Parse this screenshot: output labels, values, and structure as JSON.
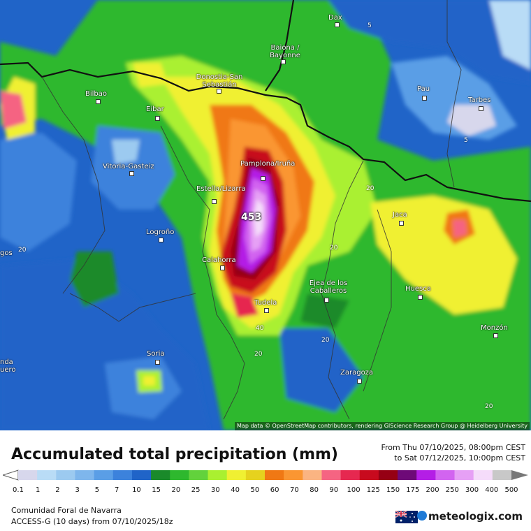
{
  "map": {
    "attribution": "Map data © OpenStreetMap contributors, rendering GIScience Research Group @ Heidelberg University",
    "peak_value": "453",
    "cities": [
      "Dax",
      "Baiona / Bayonne",
      "Donostia-San Sebastián",
      "Bilbao",
      "Eibar",
      "Pau",
      "Tarbes",
      "Vitoria-Gasteiz",
      "Pamplona/Iruña",
      "Estella/Lizarra",
      "Logroño",
      "Calahorra",
      "Tudela",
      "Ejea de los Caballeros",
      "Jaca",
      "Huesca",
      "Monzón",
      "Soria",
      "Zaragoza",
      "gos",
      "nda uero"
    ],
    "contour_labels": [
      "5",
      "5",
      "20",
      "20",
      "20",
      "20",
      "20",
      "20",
      "40"
    ]
  },
  "header": {
    "title": "Accumulated total precipitation (mm)",
    "period_from": "From Thu 07/10/2025, 08:00pm CEST",
    "period_to": "to Sat 07/12/2025, 10:00pm CEST"
  },
  "legend": {
    "ticks": [
      "0.1",
      "1",
      "2",
      "3",
      "5",
      "7",
      "10",
      "15",
      "20",
      "25",
      "30",
      "40",
      "50",
      "60",
      "70",
      "80",
      "90",
      "100",
      "125",
      "150",
      "175",
      "200",
      "250",
      "300",
      "400",
      "500"
    ],
    "colors": [
      "#d7d7ec",
      "#b9dcf6",
      "#9ccaf0",
      "#7eb6ec",
      "#5a9ee6",
      "#3c82dc",
      "#2064c8",
      "#1a8a2a",
      "#2eb82e",
      "#62d23c",
      "#aaf030",
      "#f0f032",
      "#e6d21e",
      "#f07814",
      "#fa9632",
      "#fab482",
      "#f56482",
      "#e62850",
      "#c80a1e",
      "#960014",
      "#6e0a78",
      "#b41ee6",
      "#d264f0",
      "#e6a0f5",
      "#f5dcfa",
      "#c8c8c8"
    ]
  },
  "footer": {
    "region": "Comunidad Foral de Navarra",
    "model": "ACCESS-G (10 days) from 07/10/2025/18z",
    "brand": "meteologix.com"
  }
}
